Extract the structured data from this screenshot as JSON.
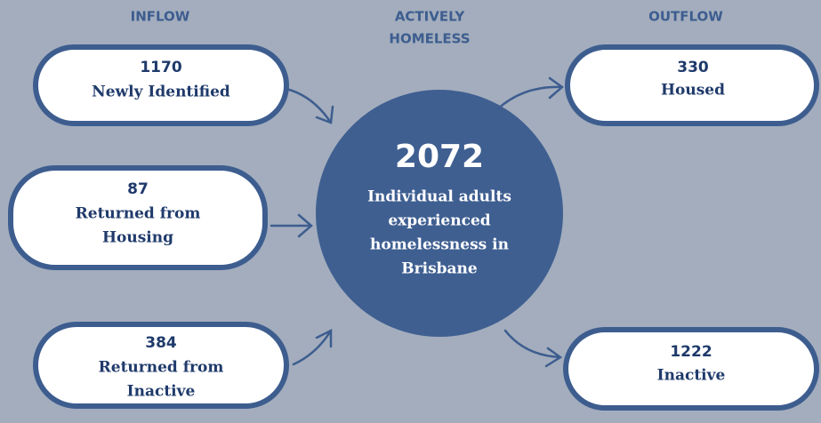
{
  "headers": {
    "inflow": "INFLOW",
    "active": [
      "ACTIVELY",
      "HOMELESS"
    ],
    "outflow": "OUTFLOW"
  },
  "inflow": [
    {
      "value": "1170",
      "label_lines": [
        "Newly Identified"
      ]
    },
    {
      "value": "87",
      "label_lines": [
        "Returned from",
        "Housing"
      ]
    },
    {
      "value": "384",
      "label_lines": [
        "Returned from",
        "Inactive"
      ]
    }
  ],
  "center": {
    "value": "2072",
    "label_lines": [
      "Individual adults",
      "experienced",
      "homelessness in",
      "Brisbane"
    ]
  },
  "outflow": [
    {
      "value": "330",
      "label_lines": [
        "Housed"
      ]
    },
    {
      "value": "1222",
      "label_lines": [
        "Inactive"
      ]
    }
  ]
}
